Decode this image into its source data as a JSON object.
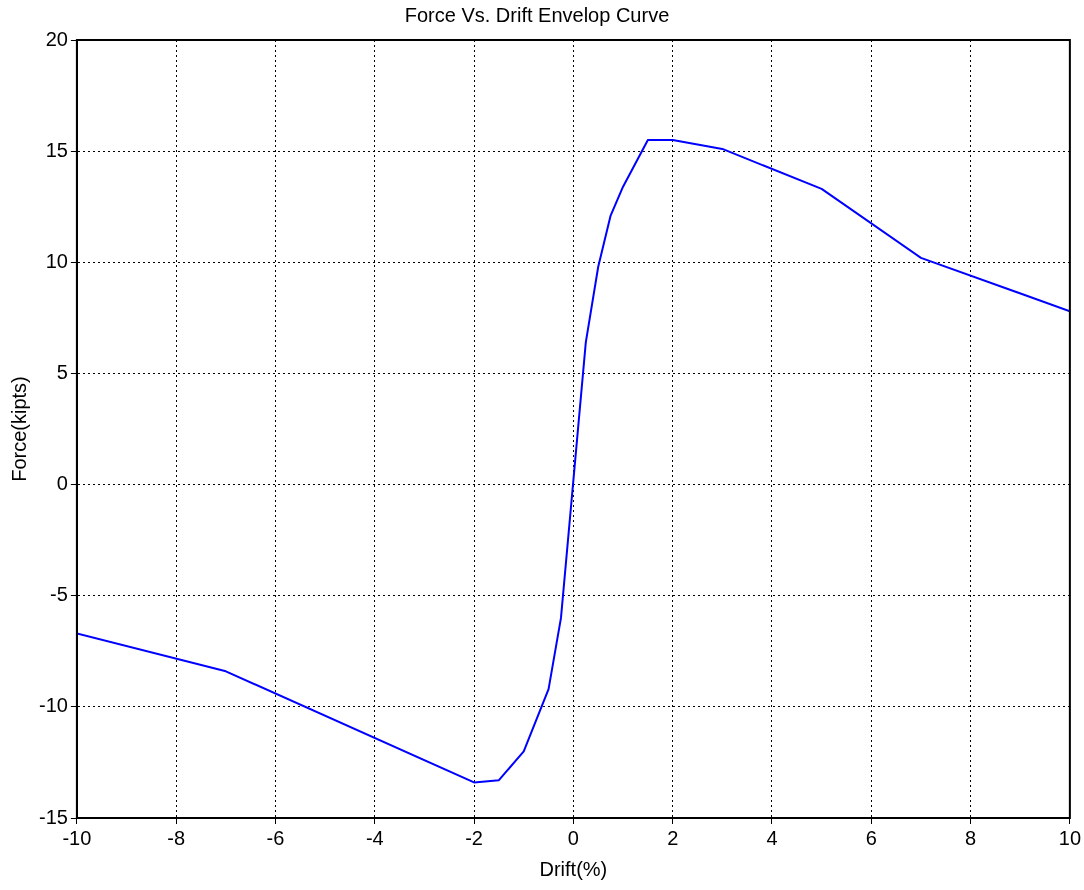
{
  "chart_data": {
    "type": "line",
    "title": "Force Vs. Drift Envelop Curve",
    "xlabel": "Drift(%)",
    "ylabel": "Force(kipts)",
    "x": [
      -10,
      -7,
      -2,
      -1.5,
      -1,
      -0.5,
      -0.25,
      0.25,
      0.5,
      0.75,
      1,
      1.5,
      2,
      3,
      5,
      7,
      10
    ],
    "series": [
      {
        "color": "#0000ff",
        "values": [
          -6.7,
          -8.4,
          -13.4,
          -13.3,
          -12,
          -9.2,
          -6,
          6.4,
          9.8,
          12.1,
          13.4,
          15.5,
          15.5,
          15.1,
          13.3,
          10.2,
          7.8
        ]
      }
    ],
    "xlim": [
      -10,
      10
    ],
    "xticks": [
      -10,
      -8,
      -6,
      -4,
      -2,
      0,
      2,
      4,
      6,
      8,
      10
    ],
    "ylim": [
      -15,
      20
    ],
    "yticks": [
      -15,
      -10,
      -5,
      0,
      5,
      10,
      15,
      20
    ],
    "grid": true,
    "legend": false,
    "marker": "none",
    "line_style": "solid"
  }
}
